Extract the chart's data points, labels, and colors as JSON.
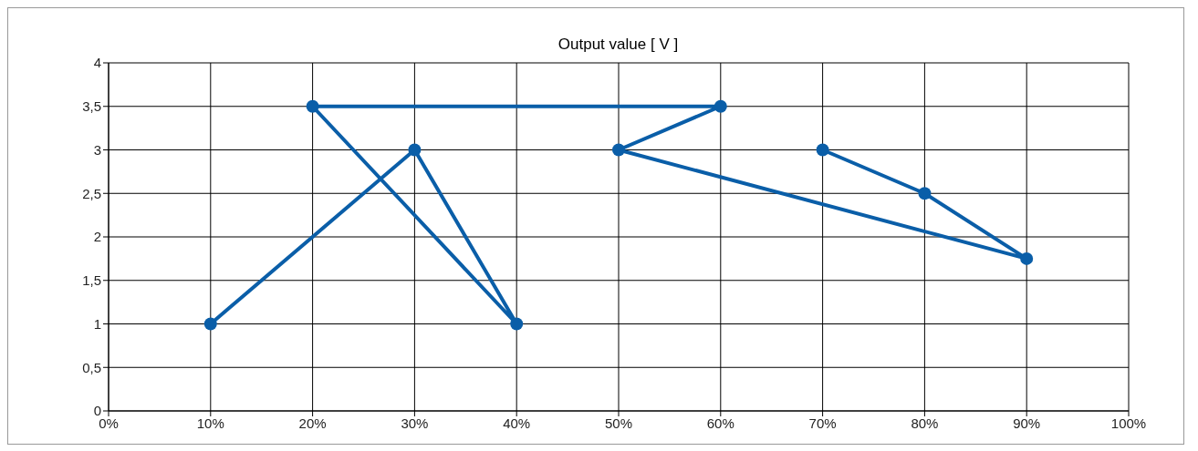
{
  "chart_data": {
    "type": "line",
    "title": "Output value [ V ]",
    "x": [
      10,
      30,
      40,
      20,
      60,
      50,
      90,
      80,
      70
    ],
    "series": [
      {
        "color": "#0a5ea8",
        "values": [
          1,
          3,
          1,
          3.5,
          3.5,
          3,
          1.75,
          2.5,
          3
        ]
      }
    ],
    "xlim": [
      0,
      100
    ],
    "xticks": [
      {
        "value": 0,
        "label": "0%"
      },
      {
        "value": 10,
        "label": "10%"
      },
      {
        "value": 20,
        "label": "20%"
      },
      {
        "value": 30,
        "label": "30%"
      },
      {
        "value": 40,
        "label": "40%"
      },
      {
        "value": 50,
        "label": "50%"
      },
      {
        "value": 60,
        "label": "60%"
      },
      {
        "value": 70,
        "label": "70%"
      },
      {
        "value": 80,
        "label": "80%"
      },
      {
        "value": 90,
        "label": "90%"
      },
      {
        "value": 100,
        "label": "100%"
      }
    ],
    "ylim": [
      0,
      4
    ],
    "yticks": [
      0,
      {
        "value": 0.5,
        "label": "0,5"
      },
      1,
      {
        "value": 1.5,
        "label": "1,5"
      },
      2,
      {
        "value": 2.5,
        "label": "2,5"
      },
      3,
      {
        "value": 3.5,
        "label": "3,5"
      },
      4
    ],
    "grid": true,
    "marker": "circle",
    "line_style": "solid",
    "legend": false
  }
}
